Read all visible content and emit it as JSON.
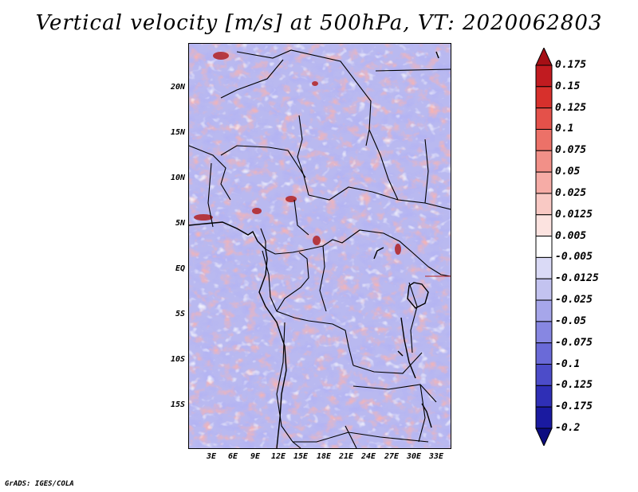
{
  "title": "Vertical velocity [m/s] at 500hPa, VT: 2020062803",
  "map": {
    "lat_labels": [
      "20N",
      "15N",
      "10N",
      "5N",
      "EQ",
      "5S",
      "10S",
      "15S"
    ],
    "lon_labels": [
      "3E",
      "6E",
      "9E",
      "12E",
      "15E",
      "18E",
      "21E",
      "24E",
      "27E",
      "30E",
      "33E"
    ]
  },
  "colorbar": {
    "units": "m/s",
    "levels": [
      "0.175",
      "0.15",
      "0.125",
      "0.1",
      "0.075",
      "0.05",
      "0.025",
      "0.0125",
      "0.005",
      "-0.005",
      "-0.0125",
      "-0.025",
      "-0.05",
      "-0.075",
      "-0.1",
      "-0.125",
      "-0.175",
      "-0.2"
    ],
    "colors": [
      "#a50f15",
      "#c11b20",
      "#d7302c",
      "#e4514a",
      "#ec7168",
      "#f29088",
      "#f6aca6",
      "#f9c9c4",
      "#fce3e0",
      "#ffffff",
      "#dadaf6",
      "#c3c3f0",
      "#a6a6ea",
      "#8787e2",
      "#6a6ad8",
      "#4c4cc9",
      "#2f2fb6",
      "#1a1aa0",
      "#0c0c80"
    ]
  },
  "credit": "GrADS: IGES/COLA"
}
